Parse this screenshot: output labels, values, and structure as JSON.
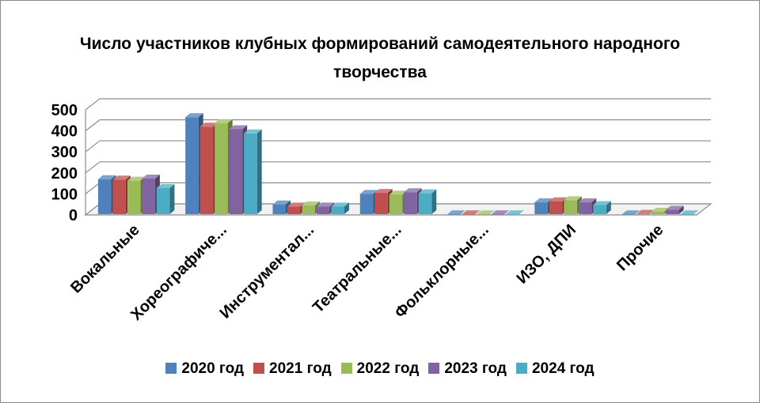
{
  "chart_data": {
    "type": "bar",
    "title": "Число участников клубных формирований самодеятельного народного творчества",
    "categories": [
      "Вокальные",
      "Хореографиче...",
      "Инструментал...",
      "Театральные...",
      "Фольклорные...",
      "ИЗО, ДПИ",
      "Прочие"
    ],
    "yticks": [
      "0",
      "100",
      "200",
      "300",
      "400",
      "500"
    ],
    "ylim": [
      0,
      500
    ],
    "series": [
      {
        "name": "2020 год",
        "color": "#4f81bd",
        "values": [
          170,
          465,
          50,
          100,
          3,
          60,
          3
        ]
      },
      {
        "name": "2021 год",
        "color": "#c0504d",
        "values": [
          168,
          420,
          40,
          105,
          3,
          65,
          5
        ]
      },
      {
        "name": "2022 год",
        "color": "#9bbb59",
        "values": [
          163,
          437,
          45,
          97,
          3,
          70,
          15
        ]
      },
      {
        "name": "2023 год",
        "color": "#8064a2",
        "values": [
          173,
          408,
          40,
          108,
          3,
          60,
          25
        ]
      },
      {
        "name": "2024 год",
        "color": "#4bacc6",
        "values": [
          128,
          388,
          40,
          103,
          3,
          47,
          3
        ]
      }
    ],
    "legend": "bottom",
    "grid": true
  }
}
